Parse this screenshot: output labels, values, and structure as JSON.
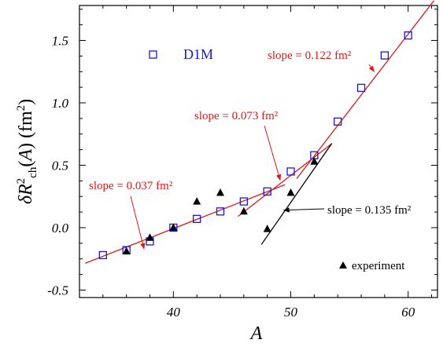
{
  "chart_data": {
    "type": "scatter",
    "xlabel": "A",
    "ylabel": "δR²ch(A) (fm²)",
    "xlim": [
      32,
      62.5
    ],
    "ylim": [
      -0.56,
      1.78
    ],
    "xticks": [
      40,
      50,
      60
    ],
    "xtick_labels": [
      "40",
      "50",
      "60"
    ],
    "yticks": [
      -0.5,
      0.0,
      0.5,
      1.0,
      1.5
    ],
    "ytick_labels": [
      "-0.5",
      "0.0",
      "0.5",
      "1.0",
      "1.5"
    ],
    "grid": false,
    "colors": {
      "d1m": "#1818e0",
      "fit": "#e01818",
      "experiment": "#000000"
    },
    "series": [
      {
        "name": "D1M",
        "marker": "open-square",
        "x": [
          34,
          36,
          38,
          40,
          42,
          44,
          46,
          48,
          50,
          52,
          54,
          56,
          58,
          60
        ],
        "y": [
          -0.22,
          -0.18,
          -0.11,
          0.0,
          0.07,
          0.13,
          0.21,
          0.29,
          0.45,
          0.58,
          0.85,
          1.12,
          1.38,
          1.54
        ]
      },
      {
        "name": "experiment",
        "marker": "filled-triangle",
        "x": [
          36,
          38,
          40,
          42,
          44,
          46,
          48,
          50,
          52
        ],
        "y": [
          -0.19,
          -0.08,
          0.0,
          0.21,
          0.28,
          0.13,
          -0.01,
          0.28,
          0.53
        ]
      }
    ],
    "fit_lines": [
      {
        "color": "red",
        "slope": 0.037,
        "x": [
          32.5,
          49.5
        ],
        "y": [
          -0.285,
          0.344
        ]
      },
      {
        "color": "red",
        "slope": 0.073,
        "x": [
          45.5,
          53.5
        ],
        "y": [
          0.09,
          0.674
        ]
      },
      {
        "color": "red",
        "slope": 0.122,
        "x": [
          50.5,
          62.2
        ],
        "y": [
          0.392,
          1.819
        ]
      },
      {
        "color": "black",
        "slope": 0.135,
        "x": [
          47.5,
          53.5
        ],
        "y": [
          -0.135,
          0.675
        ]
      }
    ],
    "annotations": {
      "slope1": {
        "text": "slope = 0.037 fm²",
        "arrow_tip": [
          37.5,
          -0.17
        ]
      },
      "slope2": {
        "text": "slope = 0.073 fm²",
        "arrow_tip": [
          49.1,
          0.38
        ]
      },
      "slope3": {
        "text": "slope = 0.122 fm²",
        "arrow_tip": [
          57.1,
          1.25
        ]
      },
      "slope4": {
        "text": "slope = 0.135 fm²",
        "arrow_tip": [
          49.4,
          0.14
        ]
      }
    },
    "legend": {
      "d1m_label": "D1M",
      "experiment_label": "experiment"
    }
  }
}
